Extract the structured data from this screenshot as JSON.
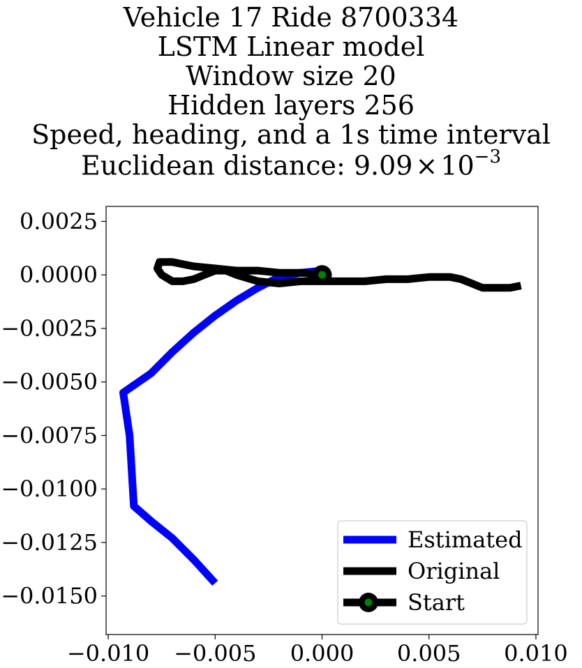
{
  "chart_data": {
    "type": "line",
    "title_lines": [
      "Vehicle 17 Ride 8700334",
      "LSTM Linear model",
      "Window size 20",
      "Hidden layers 256",
      "Speed, heading, and a 1s time interval"
    ],
    "distance_label": "Euclidean distance: ",
    "distance_mantissa": "9.09",
    "distance_times": "×",
    "distance_base": "10",
    "distance_exponent": "−3",
    "xlim": [
      -0.0101,
      0.0101
    ],
    "ylim": [
      -0.0168,
      0.0032
    ],
    "x_ticks": [
      -0.01,
      -0.005,
      0.0,
      0.005,
      0.01
    ],
    "x_tick_labels": [
      "−0.010",
      "−0.005",
      "0.000",
      "0.005",
      "0.010"
    ],
    "y_ticks": [
      0.0025,
      0.0,
      -0.0025,
      -0.005,
      -0.0075,
      -0.01,
      -0.0125,
      -0.015
    ],
    "y_tick_labels": [
      "0.0025",
      "0.0000",
      "−0.0025",
      "−0.0050",
      "−0.0075",
      "−0.0100",
      "−0.0125",
      "−0.0150"
    ],
    "grid": false,
    "legend_position": "lower-right",
    "series": [
      {
        "name": "Estimated",
        "color": "#0000ff",
        "x": [
          0.0,
          -0.001,
          -0.002,
          -0.003,
          -0.004,
          -0.005,
          -0.006,
          -0.007,
          -0.008,
          -0.0093,
          -0.009,
          -0.0088,
          -0.008,
          -0.007,
          -0.006,
          -0.005
        ],
        "y": [
          0.0002,
          0.0001,
          -0.0001,
          -0.0006,
          -0.0012,
          -0.0019,
          -0.0027,
          -0.0036,
          -0.0046,
          -0.0055,
          -0.0075,
          -0.0108,
          -0.0115,
          -0.0123,
          -0.0133,
          -0.0144
        ]
      },
      {
        "name": "Original",
        "color": "#000000",
        "x": [
          0.0,
          -0.001,
          -0.002,
          -0.003,
          -0.004,
          -0.005,
          -0.006,
          -0.007,
          -0.0076,
          -0.0077,
          -0.0075,
          -0.007,
          -0.0065,
          -0.006,
          -0.0055,
          -0.005,
          -0.0045,
          -0.004,
          -0.003,
          -0.002,
          -0.001,
          0.0,
          0.001,
          0.002,
          0.003,
          0.004,
          0.005,
          0.006,
          0.0065,
          0.007,
          0.0075,
          0.008,
          0.0088,
          0.0093
        ],
        "y": [
          0.0,
          0.0001,
          0.0001,
          0.0002,
          0.0002,
          0.0003,
          0.0004,
          0.0006,
          0.0006,
          0.0003,
          0.0,
          -0.0003,
          -0.0003,
          -0.0002,
          0.0,
          0.0002,
          0.0002,
          0.0,
          -0.0003,
          -0.0004,
          -0.0003,
          -0.0003,
          -0.0003,
          -0.0003,
          -0.0002,
          -0.0002,
          -0.0001,
          -0.0001,
          -0.0002,
          -0.0004,
          -0.0006,
          -0.0006,
          -0.0006,
          -0.0005
        ]
      },
      {
        "name": "Start",
        "color": "#000000",
        "marker_face": "#008000",
        "x": [
          0.0
        ],
        "y": [
          0.0
        ]
      }
    ]
  }
}
